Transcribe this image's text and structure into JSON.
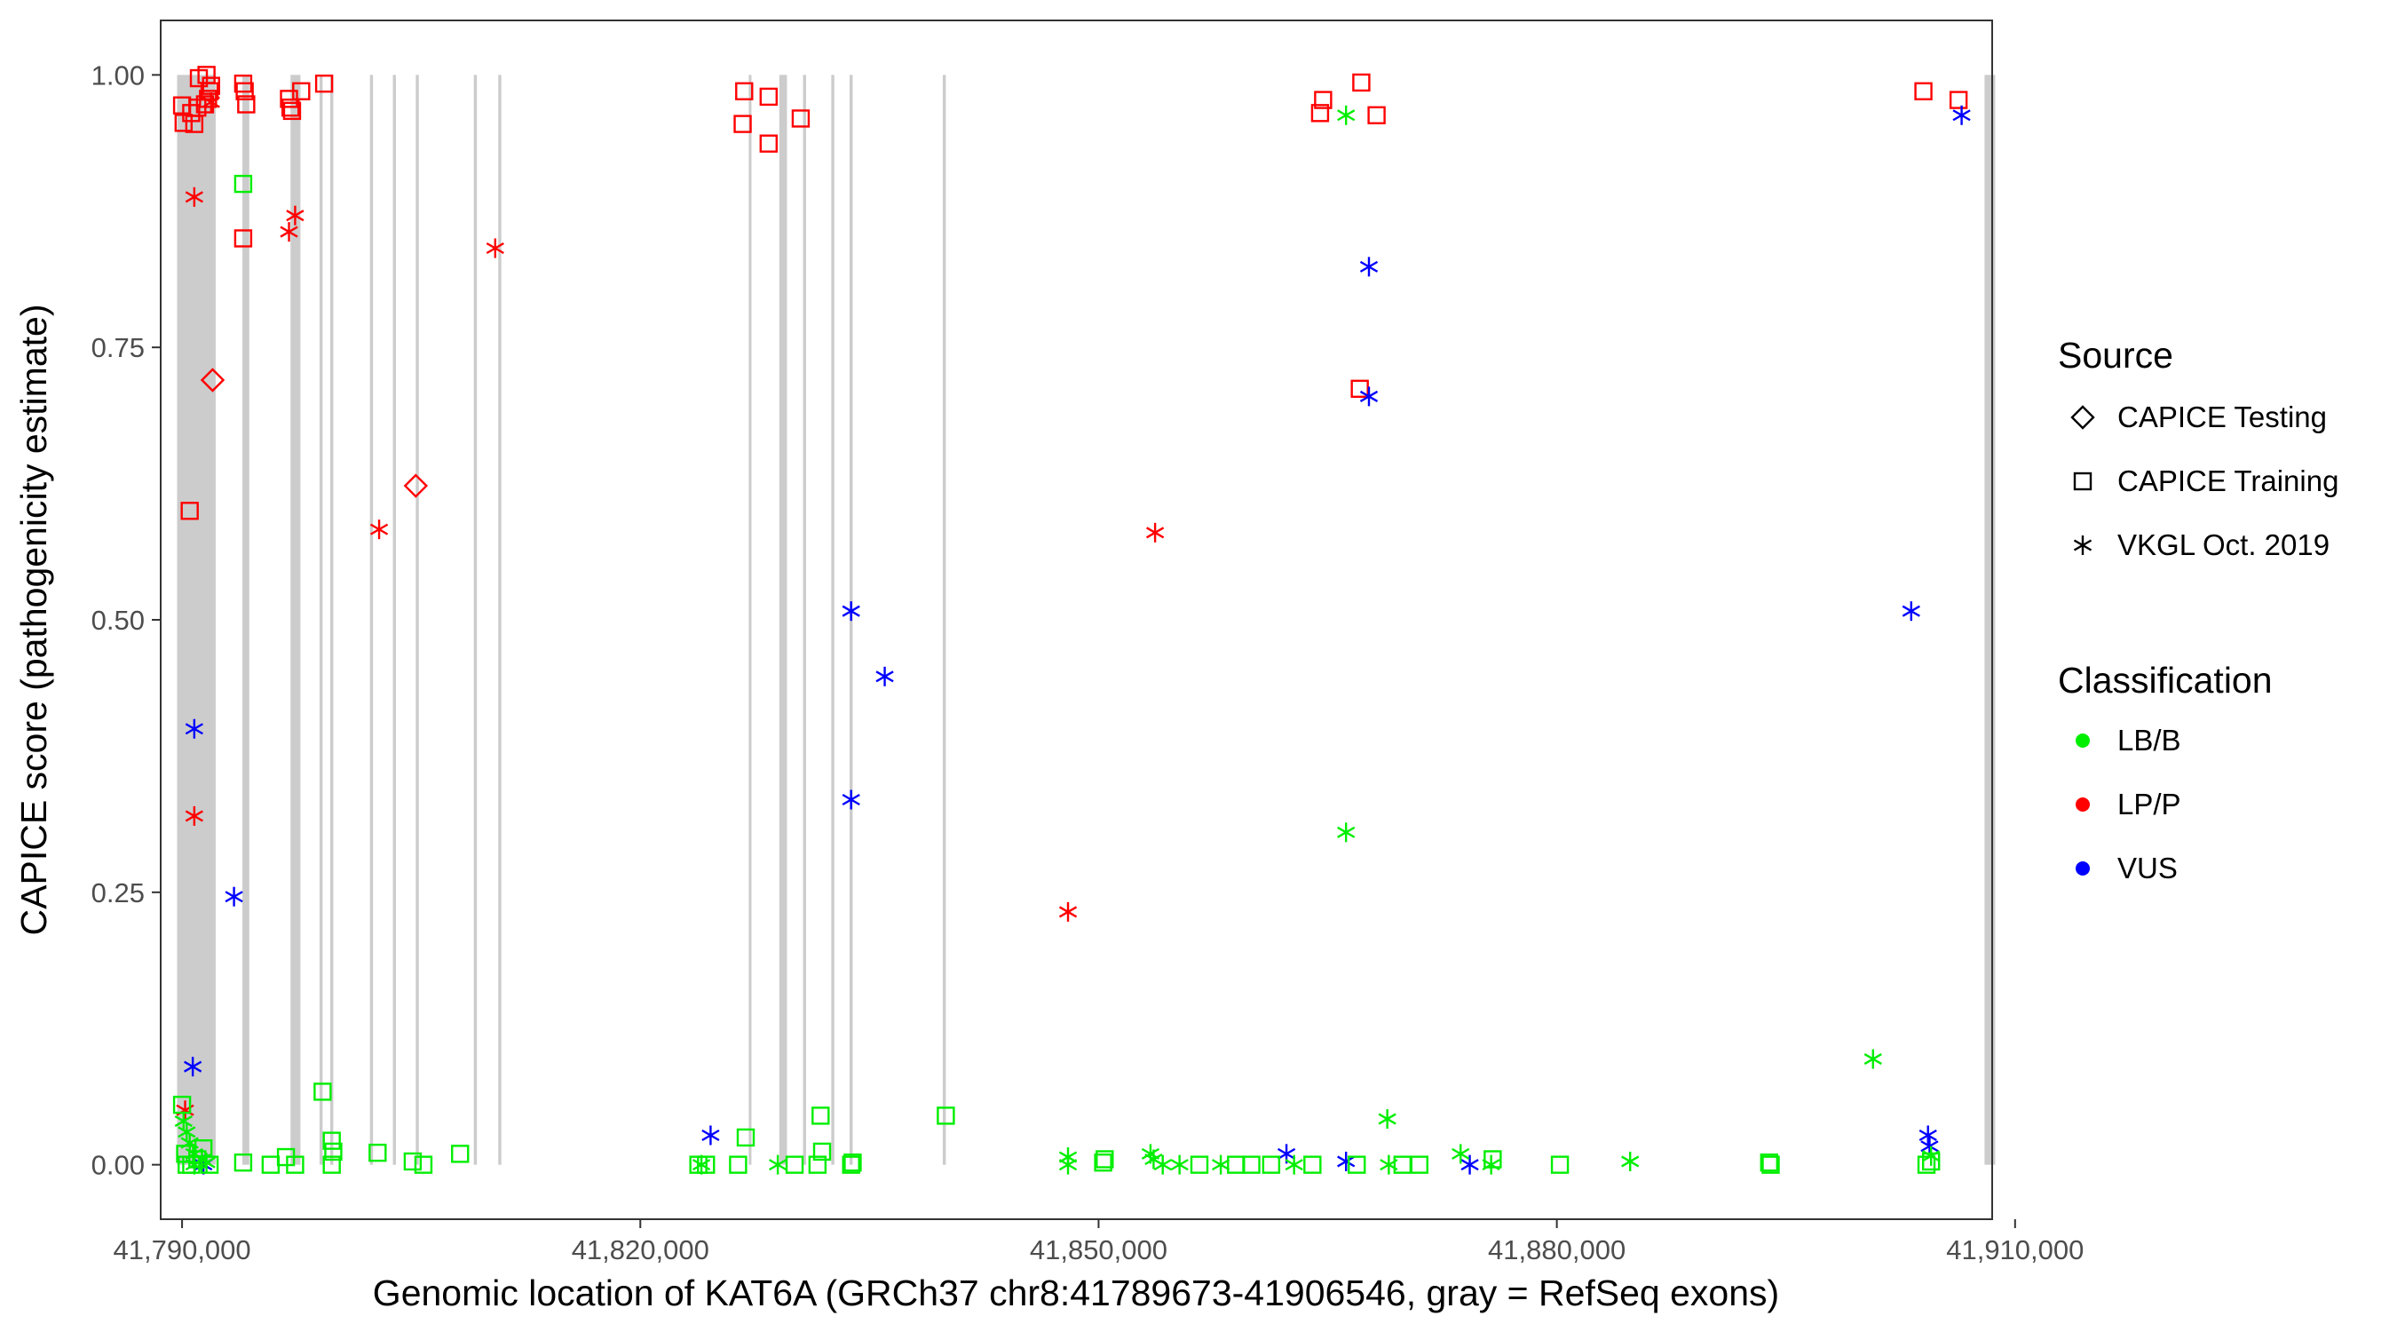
{
  "chart_data": {
    "type": "scatter",
    "title": "",
    "xlabel": "Genomic location of KAT6A (GRCh37 chr8:41789673-41906546, gray = RefSeq exons)",
    "ylabel": "CAPICE score (pathogenicity estimate)",
    "xlim": [
      41788600,
      41908500
    ],
    "ylim": [
      -0.05,
      1.05
    ],
    "x_ticks": [
      41790000,
      41820000,
      41850000,
      41880000,
      41910000
    ],
    "x_tick_labels": [
      "41,790,000",
      "41,820,000",
      "41,850,000",
      "41,880,000",
      "41,910,000"
    ],
    "y_ticks": [
      0,
      0.25,
      0.5,
      0.75,
      1.0
    ],
    "y_tick_labels": [
      "0.00",
      "0.25",
      "0.50",
      "0.75",
      "1.00"
    ],
    "grid": false,
    "legend_position": "right",
    "exons": [
      [
        41789673,
        41792200
      ],
      [
        41793950,
        41794400
      ],
      [
        41797100,
        41797750
      ],
      [
        41799000,
        41799200
      ],
      [
        41799700,
        41799900
      ],
      [
        41802300,
        41802500
      ],
      [
        41803800,
        41804000
      ],
      [
        41805300,
        41805500
      ],
      [
        41809100,
        41809300
      ],
      [
        41810700,
        41810900
      ],
      [
        41827100,
        41827250
      ],
      [
        41829100,
        41829600
      ],
      [
        41830650,
        41830850
      ],
      [
        41832500,
        41832700
      ],
      [
        41833700,
        41833900
      ],
      [
        41839800,
        41840000
      ],
      [
        41908000,
        41908700
      ]
    ],
    "legend": {
      "source_title": "Source",
      "sources": [
        {
          "key": "testing",
          "label": "CAPICE Testing",
          "shape": "diamond"
        },
        {
          "key": "training",
          "label": "CAPICE Training",
          "shape": "square"
        },
        {
          "key": "vkgl",
          "label": "VKGL Oct. 2019",
          "shape": "asterisk"
        }
      ],
      "class_title": "Classification",
      "classes": [
        {
          "key": "LB/B",
          "label": "LB/B",
          "color": "#00ee00"
        },
        {
          "key": "LP/P",
          "label": "LP/P",
          "color": "#ff0000"
        },
        {
          "key": "VUS",
          "label": "VUS",
          "color": "#0000ff"
        }
      ]
    },
    "series": [
      {
        "source": "training",
        "class": "LP/P",
        "points": [
          [
            41790000,
            0.972
          ],
          [
            41790100,
            0.956
          ],
          [
            41790500,
            0.6
          ],
          [
            41790600,
            0.965
          ],
          [
            41790800,
            0.955
          ],
          [
            41791000,
            0.97
          ],
          [
            41791100,
            0.997
          ],
          [
            41791500,
            0.973
          ],
          [
            41791700,
            0.978
          ],
          [
            41791800,
            0.985
          ],
          [
            41791600,
            1.0
          ],
          [
            41791900,
            0.99
          ],
          [
            41794000,
            0.992
          ],
          [
            41794100,
            0.985
          ],
          [
            41794200,
            0.973
          ],
          [
            41794000,
            0.85
          ],
          [
            41797000,
            0.978
          ],
          [
            41797100,
            0.97
          ],
          [
            41797200,
            0.967
          ],
          [
            41797800,
            0.985
          ],
          [
            41799300,
            0.992
          ],
          [
            41826800,
            0.985
          ],
          [
            41826700,
            0.955
          ],
          [
            41828400,
            0.98
          ],
          [
            41828400,
            0.937
          ],
          [
            41830500,
            0.96
          ],
          [
            41864500,
            0.965
          ],
          [
            41864700,
            0.977
          ],
          [
            41867200,
            0.993
          ],
          [
            41868200,
            0.963
          ],
          [
            41867100,
            0.712
          ],
          [
            41904000,
            0.985
          ],
          [
            41906300,
            0.977
          ]
        ]
      },
      {
        "source": "testing",
        "class": "LP/P",
        "points": [
          [
            41792000,
            0.72
          ],
          [
            41805300,
            0.623
          ]
        ]
      },
      {
        "source": "vkgl",
        "class": "LP/P",
        "points": [
          [
            41790200,
            0.05
          ],
          [
            41790800,
            0.888
          ],
          [
            41790800,
            0.32
          ],
          [
            41791900,
            0.975
          ],
          [
            41797000,
            0.856
          ],
          [
            41797400,
            0.871
          ],
          [
            41810500,
            0.841
          ],
          [
            41802900,
            0.583
          ],
          [
            41853700,
            0.58
          ],
          [
            41848000,
            0.232
          ]
        ]
      },
      {
        "source": "vkgl",
        "class": "VUS",
        "points": [
          [
            41790800,
            0.4
          ],
          [
            41790700,
            0.09
          ],
          [
            41793400,
            0.246
          ],
          [
            41833800,
            0.508
          ],
          [
            41836000,
            0.448
          ],
          [
            41833800,
            0.335
          ],
          [
            41824600,
            0.027
          ],
          [
            41867700,
            0.824
          ],
          [
            41867700,
            0.705
          ],
          [
            41862300,
            0.01
          ],
          [
            41866200,
            0.003
          ],
          [
            41874300,
            0.0
          ],
          [
            41903200,
            0.508
          ],
          [
            41904300,
            0.027
          ],
          [
            41904400,
            0.017
          ],
          [
            41906500,
            0.963
          ],
          [
            41791400,
            0.0
          ]
        ]
      },
      {
        "source": "vkgl",
        "class": "LB/B",
        "points": [
          [
            41790100,
            0.04
          ],
          [
            41790300,
            0.03
          ],
          [
            41790500,
            0.02
          ],
          [
            41790800,
            0.01
          ],
          [
            41791300,
            0.005
          ],
          [
            41791600,
            0.002
          ],
          [
            41790800,
            0.0
          ],
          [
            41866200,
            0.963
          ],
          [
            41866200,
            0.305
          ],
          [
            41868900,
            0.042
          ],
          [
            41824000,
            0.0
          ],
          [
            41829000,
            0.0
          ],
          [
            41848000,
            0.007
          ],
          [
            41848000,
            0.0
          ],
          [
            41853400,
            0.01
          ],
          [
            41853600,
            0.005
          ],
          [
            41854200,
            0.0
          ],
          [
            41855300,
            0.0
          ],
          [
            41858000,
            0.0
          ],
          [
            41862800,
            0.0
          ],
          [
            41869000,
            0.0
          ],
          [
            41873700,
            0.01
          ],
          [
            41875700,
            0.0
          ],
          [
            41884800,
            0.003
          ],
          [
            41900700,
            0.097
          ],
          [
            41904500,
            0.008
          ]
        ]
      },
      {
        "source": "training",
        "class": "LB/B",
        "points": [
          [
            41790000,
            0.055
          ],
          [
            41790200,
            0.01
          ],
          [
            41790300,
            0.0
          ],
          [
            41790600,
            0.0
          ],
          [
            41791000,
            0.005
          ],
          [
            41791400,
            0.015
          ],
          [
            41791800,
            0.0
          ],
          [
            41794000,
            0.9
          ],
          [
            41794000,
            0.002
          ],
          [
            41795800,
            0.0
          ],
          [
            41796800,
            0.007
          ],
          [
            41797400,
            0.0
          ],
          [
            41799200,
            0.067
          ],
          [
            41799800,
            0.022
          ],
          [
            41799800,
            0.0
          ],
          [
            41799900,
            0.012
          ],
          [
            41802800,
            0.011
          ],
          [
            41805100,
            0.003
          ],
          [
            41805800,
            0.0
          ],
          [
            41808200,
            0.01
          ],
          [
            41823800,
            0.0
          ],
          [
            41824300,
            0.0
          ],
          [
            41826400,
            0.0
          ],
          [
            41826900,
            0.025
          ],
          [
            41830100,
            0.0
          ],
          [
            41831600,
            0.0
          ],
          [
            41831800,
            0.045
          ],
          [
            41831900,
            0.012
          ],
          [
            41833800,
            0.0
          ],
          [
            41833900,
            0.002
          ],
          [
            41840000,
            0.045
          ],
          [
            41850300,
            0.002
          ],
          [
            41850400,
            0.005
          ],
          [
            41856600,
            0.0
          ],
          [
            41859000,
            0.0
          ],
          [
            41860000,
            0.0
          ],
          [
            41861300,
            0.0
          ],
          [
            41864000,
            0.0
          ],
          [
            41866900,
            0.0
          ],
          [
            41869900,
            0.0
          ],
          [
            41871000,
            0.0
          ],
          [
            41875800,
            0.005
          ],
          [
            41880200,
            0.0
          ],
          [
            41893900,
            0.002
          ],
          [
            41894000,
            0.0
          ],
          [
            41904200,
            0.0
          ],
          [
            41904500,
            0.003
          ]
        ]
      }
    ]
  }
}
